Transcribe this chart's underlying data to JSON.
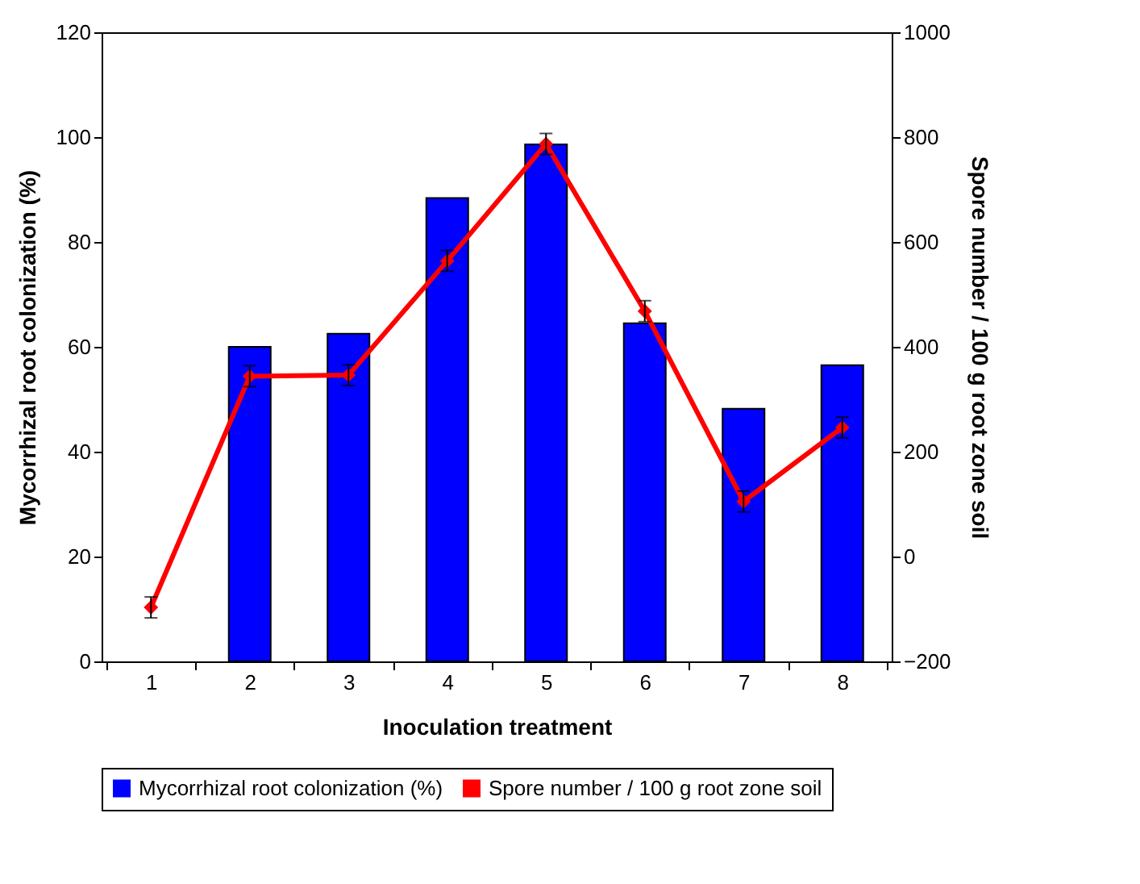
{
  "chart_data": {
    "type": "bar",
    "categories": [
      "1",
      "2",
      "3",
      "4",
      "5",
      "6",
      "7",
      "8"
    ],
    "xlabel": "Inoculation treatment",
    "ylabel": "Mycorrhizal root colonization (%)",
    "y2label": "Spore number / 100 g root zone soil",
    "series": [
      {
        "name": "Mycorrhizal root colonization (%)",
        "color": "#0000ff",
        "values": [
          null,
          60,
          62.5,
          88.4,
          98.6,
          64.5,
          48.2,
          56.5
        ]
      },
      {
        "name": "Spore number / 100 g root zone soil",
        "type": "line",
        "axis": "y2",
        "color": "#ff0000",
        "marker": "diamond",
        "values": [
          -97,
          344,
          346,
          564,
          787,
          468,
          105,
          246
        ],
        "errors": [
          20,
          20,
          20,
          20,
          20,
          20,
          20,
          20
        ]
      }
    ],
    "ylim": [
      0,
      120
    ],
    "yticks": [
      0,
      20,
      40,
      60,
      80,
      100,
      120
    ],
    "y2lim": [
      -200,
      1000
    ],
    "y2ticks": [
      -200,
      0,
      200,
      400,
      600,
      800,
      1000
    ],
    "grid": false,
    "legend": "bottom"
  }
}
